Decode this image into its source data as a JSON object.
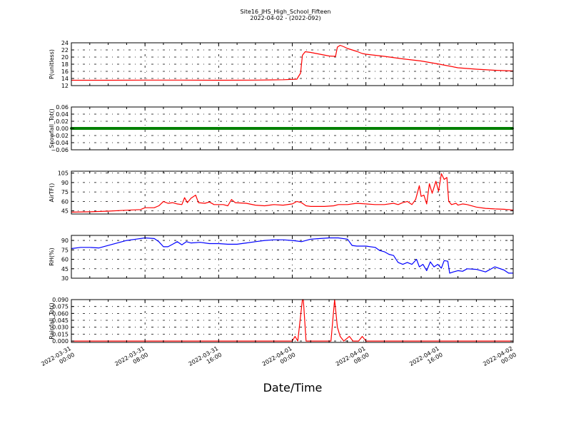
{
  "title": "Site16_JHS_High_School_Fifteen",
  "subtitle": "2022-04-02 - (2022-092)",
  "xlabel": "Date/Time",
  "chart_data": {
    "type": "line",
    "title": "Site16_JHS_High_School_Fifteen",
    "subtitle": "2022-04-02 - (2022-092)",
    "xlabel": "Date/Time",
    "x_range": [
      "2022-03-31 00:00",
      "2022-04-02 00:00"
    ],
    "x_ticks": [
      {
        "label": [
          "2022-03-31",
          "00:00"
        ],
        "hours": 0
      },
      {
        "label": [
          "2022-03-31",
          "08:00"
        ],
        "hours": 8
      },
      {
        "label": [
          "2022-03-31",
          "16:00"
        ],
        "hours": 16
      },
      {
        "label": [
          "2022-04-01",
          "00:00"
        ],
        "hours": 24
      },
      {
        "label": [
          "2022-04-01",
          "08:00"
        ],
        "hours": 32
      },
      {
        "label": [
          "2022-04-01",
          "16:00"
        ],
        "hours": 40
      },
      {
        "label": [
          "2022-04-02",
          "00:00"
        ],
        "hours": 48
      }
    ],
    "grid": true,
    "panels": [
      {
        "ylabel": "P(unitless)",
        "ylim": [
          12,
          24
        ],
        "yticks": [
          "12",
          "14",
          "16",
          "18",
          "20",
          "22",
          "24"
        ],
        "color": "#ff0000",
        "series": [
          {
            "x": 0,
            "y": 13.5
          },
          {
            "x": 4,
            "y": 13.5
          },
          {
            "x": 8,
            "y": 13.55
          },
          {
            "x": 12,
            "y": 13.55
          },
          {
            "x": 16,
            "y": 13.5
          },
          {
            "x": 20,
            "y": 13.55
          },
          {
            "x": 23,
            "y": 13.65
          },
          {
            "x": 24.5,
            "y": 13.8
          },
          {
            "x": 24.9,
            "y": 15.5
          },
          {
            "x": 25.1,
            "y": 20.5
          },
          {
            "x": 25.4,
            "y": 21.5
          },
          {
            "x": 26,
            "y": 21.3
          },
          {
            "x": 27,
            "y": 20.8
          },
          {
            "x": 28,
            "y": 20.3
          },
          {
            "x": 28.7,
            "y": 20.2
          },
          {
            "x": 28.9,
            "y": 22.8
          },
          {
            "x": 29.2,
            "y": 23.3
          },
          {
            "x": 29.6,
            "y": 22.9
          },
          {
            "x": 30,
            "y": 22.4
          },
          {
            "x": 31,
            "y": 21.6
          },
          {
            "x": 31.6,
            "y": 21
          },
          {
            "x": 32,
            "y": 20.8
          },
          {
            "x": 33,
            "y": 20.5
          },
          {
            "x": 34,
            "y": 20.2
          },
          {
            "x": 36,
            "y": 19.5
          },
          {
            "x": 38,
            "y": 18.9
          },
          {
            "x": 40,
            "y": 18
          },
          {
            "x": 42,
            "y": 17
          },
          {
            "x": 44,
            "y": 16.6
          },
          {
            "x": 46,
            "y": 16.3
          },
          {
            "x": 48,
            "y": 16.1
          }
        ]
      },
      {
        "ylabel": "Snowfall_Tot()",
        "ylim": [
          -0.06,
          0.06
        ],
        "yticks": [
          "−0.06",
          "−0.04",
          "−0.02",
          "0.00",
          "0.02",
          "0.04",
          "0.06"
        ],
        "color": "#008000",
        "marker": "dots",
        "series": [
          {
            "x": 0,
            "y": 0
          },
          {
            "x": 48,
            "y": 0
          }
        ]
      },
      {
        "ylabel": "AirTF()",
        "ylim": [
          40,
          108
        ],
        "yticks": [
          "45",
          "60",
          "75",
          "90",
          "105"
        ],
        "color": "#ff0000",
        "series": [
          {
            "x": 0,
            "y": 43
          },
          {
            "x": 2,
            "y": 43.5
          },
          {
            "x": 4,
            "y": 44.5
          },
          {
            "x": 6,
            "y": 46
          },
          {
            "x": 7.5,
            "y": 47
          },
          {
            "x": 8,
            "y": 50
          },
          {
            "x": 9,
            "y": 50
          },
          {
            "x": 9.5,
            "y": 53
          },
          {
            "x": 10,
            "y": 60
          },
          {
            "x": 10.5,
            "y": 57
          },
          {
            "x": 11,
            "y": 58
          },
          {
            "x": 11.5,
            "y": 56
          },
          {
            "x": 12,
            "y": 55
          },
          {
            "x": 12.3,
            "y": 66
          },
          {
            "x": 12.6,
            "y": 58
          },
          {
            "x": 13,
            "y": 65
          },
          {
            "x": 13.5,
            "y": 70
          },
          {
            "x": 13.8,
            "y": 58
          },
          {
            "x": 14.5,
            "y": 57
          },
          {
            "x": 15,
            "y": 59
          },
          {
            "x": 15.5,
            "y": 55
          },
          {
            "x": 16.5,
            "y": 55
          },
          {
            "x": 17,
            "y": 53
          },
          {
            "x": 17.4,
            "y": 63
          },
          {
            "x": 17.8,
            "y": 58
          },
          {
            "x": 19,
            "y": 57
          },
          {
            "x": 20,
            "y": 54
          },
          {
            "x": 21,
            "y": 53
          },
          {
            "x": 22,
            "y": 55
          },
          {
            "x": 23,
            "y": 54
          },
          {
            "x": 24,
            "y": 56
          },
          {
            "x": 24.5,
            "y": 60
          },
          {
            "x": 25,
            "y": 58
          },
          {
            "x": 25.5,
            "y": 53
          },
          {
            "x": 26,
            "y": 52
          },
          {
            "x": 27.5,
            "y": 52
          },
          {
            "x": 28.5,
            "y": 53
          },
          {
            "x": 29,
            "y": 55
          },
          {
            "x": 30,
            "y": 55
          },
          {
            "x": 31,
            "y": 57
          },
          {
            "x": 32,
            "y": 56
          },
          {
            "x": 33,
            "y": 55
          },
          {
            "x": 34,
            "y": 55
          },
          {
            "x": 35,
            "y": 57
          },
          {
            "x": 35.5,
            "y": 55
          },
          {
            "x": 36,
            "y": 58
          },
          {
            "x": 36.5,
            "y": 60
          },
          {
            "x": 37,
            "y": 55
          },
          {
            "x": 37.4,
            "y": 63
          },
          {
            "x": 37.8,
            "y": 85
          },
          {
            "x": 38,
            "y": 68
          },
          {
            "x": 38.3,
            "y": 70
          },
          {
            "x": 38.6,
            "y": 56
          },
          {
            "x": 38.9,
            "y": 88
          },
          {
            "x": 39.2,
            "y": 73
          },
          {
            "x": 39.6,
            "y": 92
          },
          {
            "x": 39.9,
            "y": 76
          },
          {
            "x": 40.2,
            "y": 104
          },
          {
            "x": 40.5,
            "y": 95
          },
          {
            "x": 40.8,
            "y": 98
          },
          {
            "x": 41,
            "y": 60
          },
          {
            "x": 41.3,
            "y": 55
          },
          {
            "x": 41.8,
            "y": 57
          },
          {
            "x": 42,
            "y": 54
          },
          {
            "x": 42.5,
            "y": 56
          },
          {
            "x": 43,
            "y": 55
          },
          {
            "x": 44,
            "y": 51
          },
          {
            "x": 45,
            "y": 49
          },
          {
            "x": 46,
            "y": 48
          },
          {
            "x": 47,
            "y": 47.5
          },
          {
            "x": 48,
            "y": 46.5
          }
        ]
      },
      {
        "ylabel": "RH(%)",
        "ylim": [
          30,
          98
        ],
        "yticks": [
          "30",
          "45",
          "60",
          "75",
          "90"
        ],
        "color": "#0000ff",
        "series": [
          {
            "x": 0,
            "y": 77
          },
          {
            "x": 1,
            "y": 79
          },
          {
            "x": 2,
            "y": 79
          },
          {
            "x": 3,
            "y": 78
          },
          {
            "x": 4,
            "y": 82
          },
          {
            "x": 5,
            "y": 86
          },
          {
            "x": 6,
            "y": 90
          },
          {
            "x": 7,
            "y": 92
          },
          {
            "x": 8,
            "y": 94
          },
          {
            "x": 9,
            "y": 93
          },
          {
            "x": 9.5,
            "y": 88
          },
          {
            "x": 10,
            "y": 80
          },
          {
            "x": 10.5,
            "y": 80
          },
          {
            "x": 11,
            "y": 84
          },
          {
            "x": 11.5,
            "y": 88
          },
          {
            "x": 12,
            "y": 83
          },
          {
            "x": 12.5,
            "y": 88
          },
          {
            "x": 13,
            "y": 86
          },
          {
            "x": 14,
            "y": 87
          },
          {
            "x": 15,
            "y": 85
          },
          {
            "x": 16,
            "y": 85
          },
          {
            "x": 17,
            "y": 84
          },
          {
            "x": 18,
            "y": 84
          },
          {
            "x": 19,
            "y": 86
          },
          {
            "x": 20,
            "y": 88
          },
          {
            "x": 21,
            "y": 90
          },
          {
            "x": 22,
            "y": 91
          },
          {
            "x": 23,
            "y": 91
          },
          {
            "x": 24,
            "y": 90
          },
          {
            "x": 24.5,
            "y": 89
          },
          {
            "x": 25,
            "y": 88
          },
          {
            "x": 26,
            "y": 92
          },
          {
            "x": 27,
            "y": 93
          },
          {
            "x": 28,
            "y": 94
          },
          {
            "x": 29,
            "y": 94
          },
          {
            "x": 30,
            "y": 92
          },
          {
            "x": 30.5,
            "y": 82
          },
          {
            "x": 31,
            "y": 81
          },
          {
            "x": 32,
            "y": 81
          },
          {
            "x": 33,
            "y": 79
          },
          {
            "x": 33.5,
            "y": 74
          },
          {
            "x": 34,
            "y": 72
          },
          {
            "x": 34.5,
            "y": 68
          },
          {
            "x": 35,
            "y": 66
          },
          {
            "x": 35.5,
            "y": 55
          },
          {
            "x": 36,
            "y": 52
          },
          {
            "x": 36.5,
            "y": 55
          },
          {
            "x": 37,
            "y": 52
          },
          {
            "x": 37.5,
            "y": 60
          },
          {
            "x": 37.8,
            "y": 48
          },
          {
            "x": 38.2,
            "y": 52
          },
          {
            "x": 38.6,
            "y": 42
          },
          {
            "x": 39,
            "y": 56
          },
          {
            "x": 39.4,
            "y": 48
          },
          {
            "x": 39.8,
            "y": 52
          },
          {
            "x": 40.2,
            "y": 46
          },
          {
            "x": 40.5,
            "y": 58
          },
          {
            "x": 40.9,
            "y": 57
          },
          {
            "x": 41.1,
            "y": 38
          },
          {
            "x": 41.5,
            "y": 40
          },
          {
            "x": 42,
            "y": 42
          },
          {
            "x": 42.5,
            "y": 41
          },
          {
            "x": 43,
            "y": 45
          },
          {
            "x": 44,
            "y": 44
          },
          {
            "x": 45,
            "y": 40
          },
          {
            "x": 46,
            "y": 48
          },
          {
            "x": 47,
            "y": 43
          },
          {
            "x": 47.5,
            "y": 38
          },
          {
            "x": 48,
            "y": 38
          }
        ]
      },
      {
        "ylabel": "Rainfall_Tot()",
        "ylim": [
          -0.003,
          0.09
        ],
        "yticks": [
          "0.000",
          "0.015",
          "0.030",
          "0.045",
          "0.060",
          "0.075",
          "0.090"
        ],
        "color": "#ff0000",
        "series": [
          {
            "x": 0,
            "y": 0
          },
          {
            "x": 24,
            "y": 0
          },
          {
            "x": 24.3,
            "y": 0.01
          },
          {
            "x": 24.6,
            "y": 0
          },
          {
            "x": 25.1,
            "y": 0.09
          },
          {
            "x": 25.2,
            "y": 0.09
          },
          {
            "x": 25.5,
            "y": 0
          },
          {
            "x": 28.2,
            "y": 0
          },
          {
            "x": 28.6,
            "y": 0.09
          },
          {
            "x": 28.9,
            "y": 0.03
          },
          {
            "x": 29.2,
            "y": 0.01
          },
          {
            "x": 29.6,
            "y": 0
          },
          {
            "x": 30.2,
            "y": 0.01
          },
          {
            "x": 30.6,
            "y": 0
          },
          {
            "x": 31.2,
            "y": 0
          },
          {
            "x": 31.6,
            "y": 0.01
          },
          {
            "x": 32,
            "y": 0
          },
          {
            "x": 48,
            "y": 0
          }
        ]
      }
    ]
  }
}
